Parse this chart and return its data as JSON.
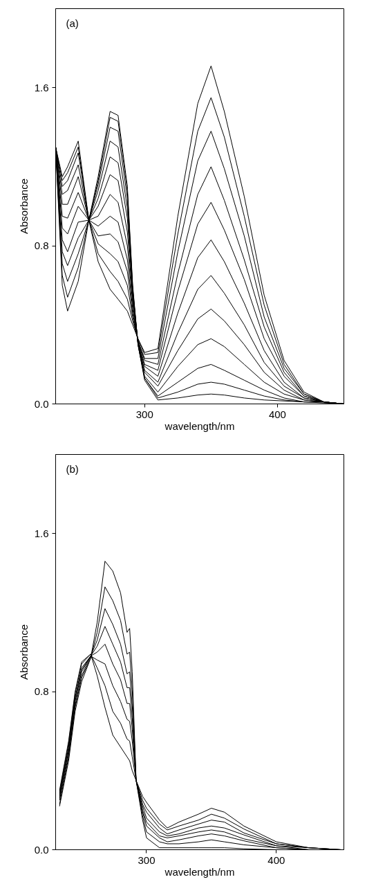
{
  "chart_data": [
    {
      "type": "line",
      "annotations": [
        "(a)"
      ],
      "xlabel": "wavelength/nm",
      "ylabel": "Absorbance",
      "xlim": [
        233,
        450
      ],
      "ylim": [
        0,
        2.0
      ],
      "xticks": [
        300,
        400
      ],
      "yticks": [
        {
          "value": 0,
          "label": "0.0"
        },
        {
          "value": 0.8,
          "label": "0.8"
        },
        {
          "value": 1.6,
          "label": "1.6"
        }
      ],
      "x": [
        233,
        238,
        242,
        250,
        258,
        265,
        274,
        280,
        287,
        291,
        295,
        300,
        310,
        325,
        340,
        350,
        360,
        375,
        390,
        405,
        420,
        435,
        450
      ],
      "series": [
        {
          "color": "#000000",
          "values": [
            1.3,
            1.15,
            1.2,
            1.33,
            0.93,
            1.15,
            1.48,
            1.46,
            1.1,
            0.6,
            0.3,
            0.12,
            0.02,
            0.03,
            0.045,
            0.05,
            0.045,
            0.03,
            0.02,
            0.015,
            0.01,
            0.005,
            0.0
          ]
        },
        {
          "color": "#000000",
          "values": [
            1.3,
            1.13,
            1.17,
            1.3,
            0.93,
            1.13,
            1.45,
            1.43,
            1.08,
            0.59,
            0.3,
            0.13,
            0.03,
            0.06,
            0.1,
            0.11,
            0.1,
            0.07,
            0.04,
            0.02,
            0.01,
            0.01,
            0.0
          ]
        },
        {
          "color": "#000000",
          "values": [
            1.3,
            1.1,
            1.13,
            1.27,
            0.93,
            1.11,
            1.4,
            1.38,
            1.04,
            0.58,
            0.3,
            0.13,
            0.04,
            0.11,
            0.18,
            0.2,
            0.17,
            0.12,
            0.07,
            0.03,
            0.01,
            0.01,
            0.0
          ]
        },
        {
          "color": "#000000",
          "values": [
            1.3,
            1.06,
            1.08,
            1.21,
            0.93,
            1.08,
            1.33,
            1.3,
            0.99,
            0.57,
            0.31,
            0.14,
            0.06,
            0.19,
            0.3,
            0.33,
            0.29,
            0.2,
            0.11,
            0.05,
            0.02,
            0.01,
            0.0
          ]
        },
        {
          "color": "#000000",
          "values": [
            1.3,
            1.01,
            1.01,
            1.15,
            0.93,
            1.04,
            1.25,
            1.22,
            0.94,
            0.55,
            0.31,
            0.16,
            0.09,
            0.27,
            0.43,
            0.48,
            0.42,
            0.3,
            0.16,
            0.07,
            0.02,
            0.01,
            0.0
          ]
        },
        {
          "color": "#000000",
          "values": [
            1.3,
            0.95,
            0.94,
            1.07,
            0.93,
            1.0,
            1.16,
            1.13,
            0.87,
            0.53,
            0.31,
            0.17,
            0.11,
            0.36,
            0.58,
            0.65,
            0.56,
            0.4,
            0.21,
            0.09,
            0.03,
            0.01,
            0.0
          ]
        },
        {
          "color": "#000000",
          "values": [
            1.3,
            0.89,
            0.86,
            1.0,
            0.93,
            0.95,
            1.06,
            1.02,
            0.8,
            0.51,
            0.31,
            0.19,
            0.14,
            0.46,
            0.74,
            0.83,
            0.72,
            0.51,
            0.27,
            0.11,
            0.03,
            0.01,
            0.0
          ]
        },
        {
          "color": "#000000",
          "values": [
            1.3,
            0.83,
            0.77,
            0.92,
            0.93,
            0.9,
            0.95,
            0.92,
            0.73,
            0.48,
            0.32,
            0.2,
            0.17,
            0.57,
            0.91,
            1.02,
            0.88,
            0.63,
            0.33,
            0.14,
            0.04,
            0.01,
            0.0
          ]
        },
        {
          "color": "#000000",
          "values": [
            1.3,
            0.77,
            0.7,
            0.84,
            0.93,
            0.85,
            0.86,
            0.82,
            0.67,
            0.46,
            0.32,
            0.22,
            0.2,
            0.66,
            1.06,
            1.2,
            1.03,
            0.73,
            0.39,
            0.16,
            0.04,
            0.01,
            0.0
          ]
        },
        {
          "color": "#000000",
          "values": [
            1.3,
            0.71,
            0.62,
            0.76,
            0.93,
            0.81,
            0.76,
            0.72,
            0.6,
            0.44,
            0.32,
            0.23,
            0.23,
            0.77,
            1.23,
            1.38,
            1.19,
            0.85,
            0.44,
            0.18,
            0.05,
            0.01,
            0.0
          ]
        },
        {
          "color": "#000000",
          "values": [
            1.3,
            0.65,
            0.54,
            0.69,
            0.93,
            0.76,
            0.67,
            0.62,
            0.53,
            0.42,
            0.33,
            0.25,
            0.26,
            0.86,
            1.38,
            1.55,
            1.35,
            0.95,
            0.5,
            0.2,
            0.05,
            0.01,
            0.0
          ]
        },
        {
          "color": "#000000",
          "values": [
            1.3,
            0.6,
            0.47,
            0.62,
            0.93,
            0.72,
            0.58,
            0.53,
            0.47,
            0.4,
            0.33,
            0.26,
            0.28,
            0.95,
            1.52,
            1.71,
            1.48,
            1.05,
            0.55,
            0.22,
            0.06,
            0.01,
            0.0
          ]
        }
      ]
    },
    {
      "type": "line",
      "annotations": [
        "(b)"
      ],
      "xlabel": "wavelength/nm",
      "ylabel": "Absorbance",
      "xlim": [
        230,
        452
      ],
      "ylim": [
        0,
        2.0
      ],
      "xticks": [
        300,
        400
      ],
      "yticks": [
        {
          "value": 0,
          "label": "0.0"
        },
        {
          "value": 0.8,
          "label": "0.8"
        },
        {
          "value": 1.6,
          "label": "1.6"
        }
      ],
      "x": [
        233,
        240,
        245,
        250,
        257,
        262,
        268,
        274,
        280,
        285,
        287,
        289,
        292,
        297,
        300,
        310,
        316,
        325,
        340,
        350,
        360,
        375,
        400,
        425,
        450
      ],
      "series": [
        {
          "color": "#000000",
          "values": [
            0.22,
            0.45,
            0.7,
            0.85,
            0.97,
            1.15,
            1.46,
            1.41,
            1.3,
            1.1,
            1.12,
            0.9,
            0.35,
            0.15,
            0.06,
            0.01,
            0.01,
            0.01,
            0.01,
            0.01,
            0.01,
            0.005,
            0.0,
            0.0,
            0.0
          ]
        },
        {
          "color": "#000000",
          "values": [
            0.23,
            0.47,
            0.72,
            0.87,
            0.97,
            1.1,
            1.33,
            1.26,
            1.16,
            0.99,
            1.0,
            0.81,
            0.35,
            0.17,
            0.09,
            0.04,
            0.03,
            0.03,
            0.04,
            0.05,
            0.04,
            0.025,
            0.01,
            0.0,
            0.0
          ]
        },
        {
          "color": "#000000",
          "values": [
            0.25,
            0.48,
            0.73,
            0.88,
            0.98,
            1.06,
            1.22,
            1.14,
            1.04,
            0.89,
            0.9,
            0.73,
            0.35,
            0.19,
            0.12,
            0.06,
            0.04,
            0.05,
            0.07,
            0.08,
            0.07,
            0.045,
            0.01,
            0.0,
            0.0
          ]
        },
        {
          "color": "#000000",
          "values": [
            0.26,
            0.5,
            0.75,
            0.9,
            0.98,
            1.03,
            1.13,
            1.04,
            0.95,
            0.82,
            0.82,
            0.67,
            0.35,
            0.2,
            0.14,
            0.07,
            0.06,
            0.07,
            0.09,
            0.1,
            0.09,
            0.055,
            0.02,
            0.0,
            0.0
          ]
        },
        {
          "color": "#000000",
          "values": [
            0.27,
            0.51,
            0.76,
            0.91,
            0.98,
            1.0,
            1.04,
            0.94,
            0.86,
            0.74,
            0.74,
            0.61,
            0.35,
            0.22,
            0.16,
            0.09,
            0.07,
            0.08,
            0.11,
            0.12,
            0.11,
            0.075,
            0.02,
            0.01,
            0.0
          ]
        },
        {
          "color": "#000000",
          "values": [
            0.28,
            0.52,
            0.77,
            0.92,
            0.98,
            0.96,
            0.94,
            0.83,
            0.75,
            0.66,
            0.65,
            0.55,
            0.35,
            0.23,
            0.19,
            0.11,
            0.08,
            0.1,
            0.13,
            0.15,
            0.14,
            0.085,
            0.03,
            0.01,
            0.0
          ]
        },
        {
          "color": "#000000",
          "values": [
            0.29,
            0.54,
            0.79,
            0.94,
            0.99,
            0.92,
            0.83,
            0.7,
            0.64,
            0.56,
            0.55,
            0.47,
            0.35,
            0.25,
            0.21,
            0.13,
            0.1,
            0.12,
            0.15,
            0.18,
            0.16,
            0.105,
            0.03,
            0.01,
            0.0
          ]
        },
        {
          "color": "#000000",
          "values": [
            0.3,
            0.55,
            0.8,
            0.95,
            0.99,
            0.88,
            0.72,
            0.58,
            0.52,
            0.47,
            0.45,
            0.4,
            0.35,
            0.27,
            0.24,
            0.15,
            0.11,
            0.14,
            0.18,
            0.21,
            0.19,
            0.12,
            0.04,
            0.01,
            0.0
          ]
        }
      ]
    }
  ]
}
